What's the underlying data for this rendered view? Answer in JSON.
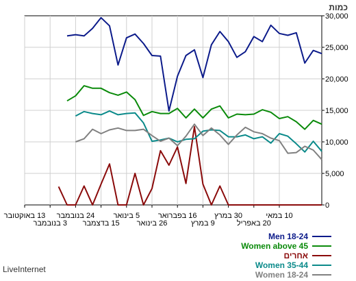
{
  "chart_data": {
    "type": "line",
    "ylabel": "כמות",
    "ylim": [
      0,
      30000
    ],
    "y_ticks": [
      "0",
      "5,000",
      "10,000",
      "15,000",
      "20,000",
      "25,000",
      "30,000"
    ],
    "y_tick_values": [
      0,
      5000,
      10000,
      15000,
      20000,
      25000,
      30000
    ],
    "grid": true,
    "point_count": 36,
    "x_tick_labels": [
      {
        "text": "13 באוקטובר",
        "index": 35,
        "row": 1
      },
      {
        "text": "3 בנובמבר",
        "index": 32,
        "row": 2
      },
      {
        "text": "24 בנובמבר",
        "index": 29,
        "row": 1
      },
      {
        "text": "15 בדצמבר",
        "index": 26,
        "row": 2
      },
      {
        "text": "5 בינואר",
        "index": 23,
        "row": 1
      },
      {
        "text": "26 בינואר",
        "index": 20,
        "row": 2
      },
      {
        "text": "16 בפברואר",
        "index": 17,
        "row": 1
      },
      {
        "text": "9 במרץ",
        "index": 14,
        "row": 2
      },
      {
        "text": "30 במרץ",
        "index": 11,
        "row": 1
      },
      {
        "text": "20 באפריל",
        "index": 8,
        "row": 2
      },
      {
        "text": "10 במאי",
        "index": 5,
        "row": 1
      }
    ],
    "series": [
      {
        "name": "Men 18-24",
        "color": "#0b1a8a",
        "values": [
          24000,
          24500,
          22500,
          27300,
          26900,
          27200,
          28500,
          25900,
          26700,
          24300,
          23400,
          25900,
          27500,
          25400,
          20200,
          24600,
          23700,
          20400,
          14900,
          23600,
          23700,
          25600,
          27100,
          26500,
          22200,
          28400,
          29700,
          28000,
          26800,
          27000,
          26800,
          null,
          null,
          null,
          null,
          null
        ]
      },
      {
        "name": "Women above 45",
        "color": "#0a8a0a",
        "values": [
          12800,
          13400,
          12000,
          13200,
          14000,
          13700,
          14700,
          15100,
          14400,
          14300,
          14400,
          13800,
          15700,
          15200,
          13800,
          15200,
          13800,
          15300,
          14500,
          14500,
          14800,
          14200,
          16700,
          17900,
          17400,
          17800,
          18500,
          18500,
          18900,
          17300,
          16500,
          null,
          null,
          null,
          null,
          null
        ]
      },
      {
        "name": "אחרים",
        "color": "#8a0a0a",
        "values": [
          0,
          0,
          0,
          0,
          0,
          0,
          0,
          0,
          0,
          0,
          0,
          0,
          3000,
          0,
          3300,
          12400,
          3400,
          9200,
          6300,
          8600,
          2600,
          0,
          5000,
          0,
          0,
          6500,
          3300,
          0,
          3000,
          0,
          0,
          2900,
          null,
          null,
          null,
          null
        ]
      },
      {
        "name": "Women 35-44",
        "color": "#0a8a8a",
        "values": [
          8500,
          10100,
          8400,
          9700,
          10900,
          11300,
          9800,
          10800,
          10500,
          11100,
          10800,
          10800,
          11800,
          11900,
          11700,
          10500,
          10400,
          10000,
          10600,
          10300,
          10100,
          13000,
          14600,
          14500,
          14300,
          14900,
          14300,
          14500,
          14800,
          14100,
          null,
          null,
          null,
          null,
          null,
          null
        ]
      },
      {
        "name": "Women 18-24",
        "color": "#808080",
        "values": [
          7200,
          8700,
          9300,
          8300,
          8200,
          10200,
          10600,
          11300,
          11600,
          12300,
          11100,
          9600,
          11100,
          12200,
          11000,
          12800,
          10900,
          9400,
          10600,
          10100,
          11000,
          12000,
          11800,
          11800,
          12200,
          11900,
          11300,
          12000,
          10500,
          10000,
          null,
          null,
          null,
          null,
          null,
          null
        ]
      }
    ],
    "legend": [
      {
        "name": "Men 18-24",
        "color": "#0b1a8a"
      },
      {
        "name": "Women above 45",
        "color": "#0a8a0a"
      },
      {
        "name": "אחרים",
        "color": "#8a0a0a"
      },
      {
        "name": "Women 35-44",
        "color": "#0a8a8a"
      },
      {
        "name": "Women 18-24",
        "color": "#808080"
      }
    ]
  },
  "footer": {
    "brand": "LiveInternet"
  }
}
